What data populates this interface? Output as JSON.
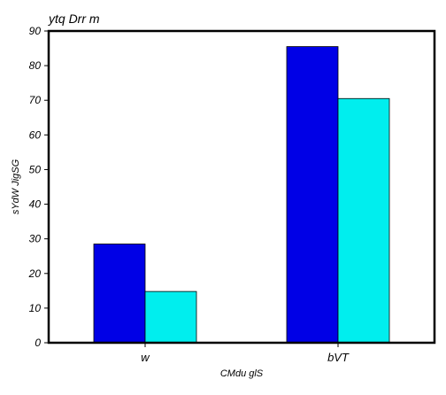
{
  "chart_data": {
    "type": "bar",
    "title": "ytq  Drr m",
    "xlabel": "CMdu glS",
    "ylabel": "sYdW  JigSG",
    "categories": [
      "w",
      "bVT"
    ],
    "series": [
      {
        "values": [
          28.5,
          85.5
        ],
        "color": "#0000e6"
      },
      {
        "values": [
          14.8,
          70.5
        ],
        "color": "#00eeee"
      }
    ],
    "ylim": [
      0,
      90
    ],
    "yticks": [
      0,
      10,
      20,
      30,
      40,
      50,
      60,
      70,
      80,
      90
    ],
    "grid": false,
    "legend": "none"
  }
}
